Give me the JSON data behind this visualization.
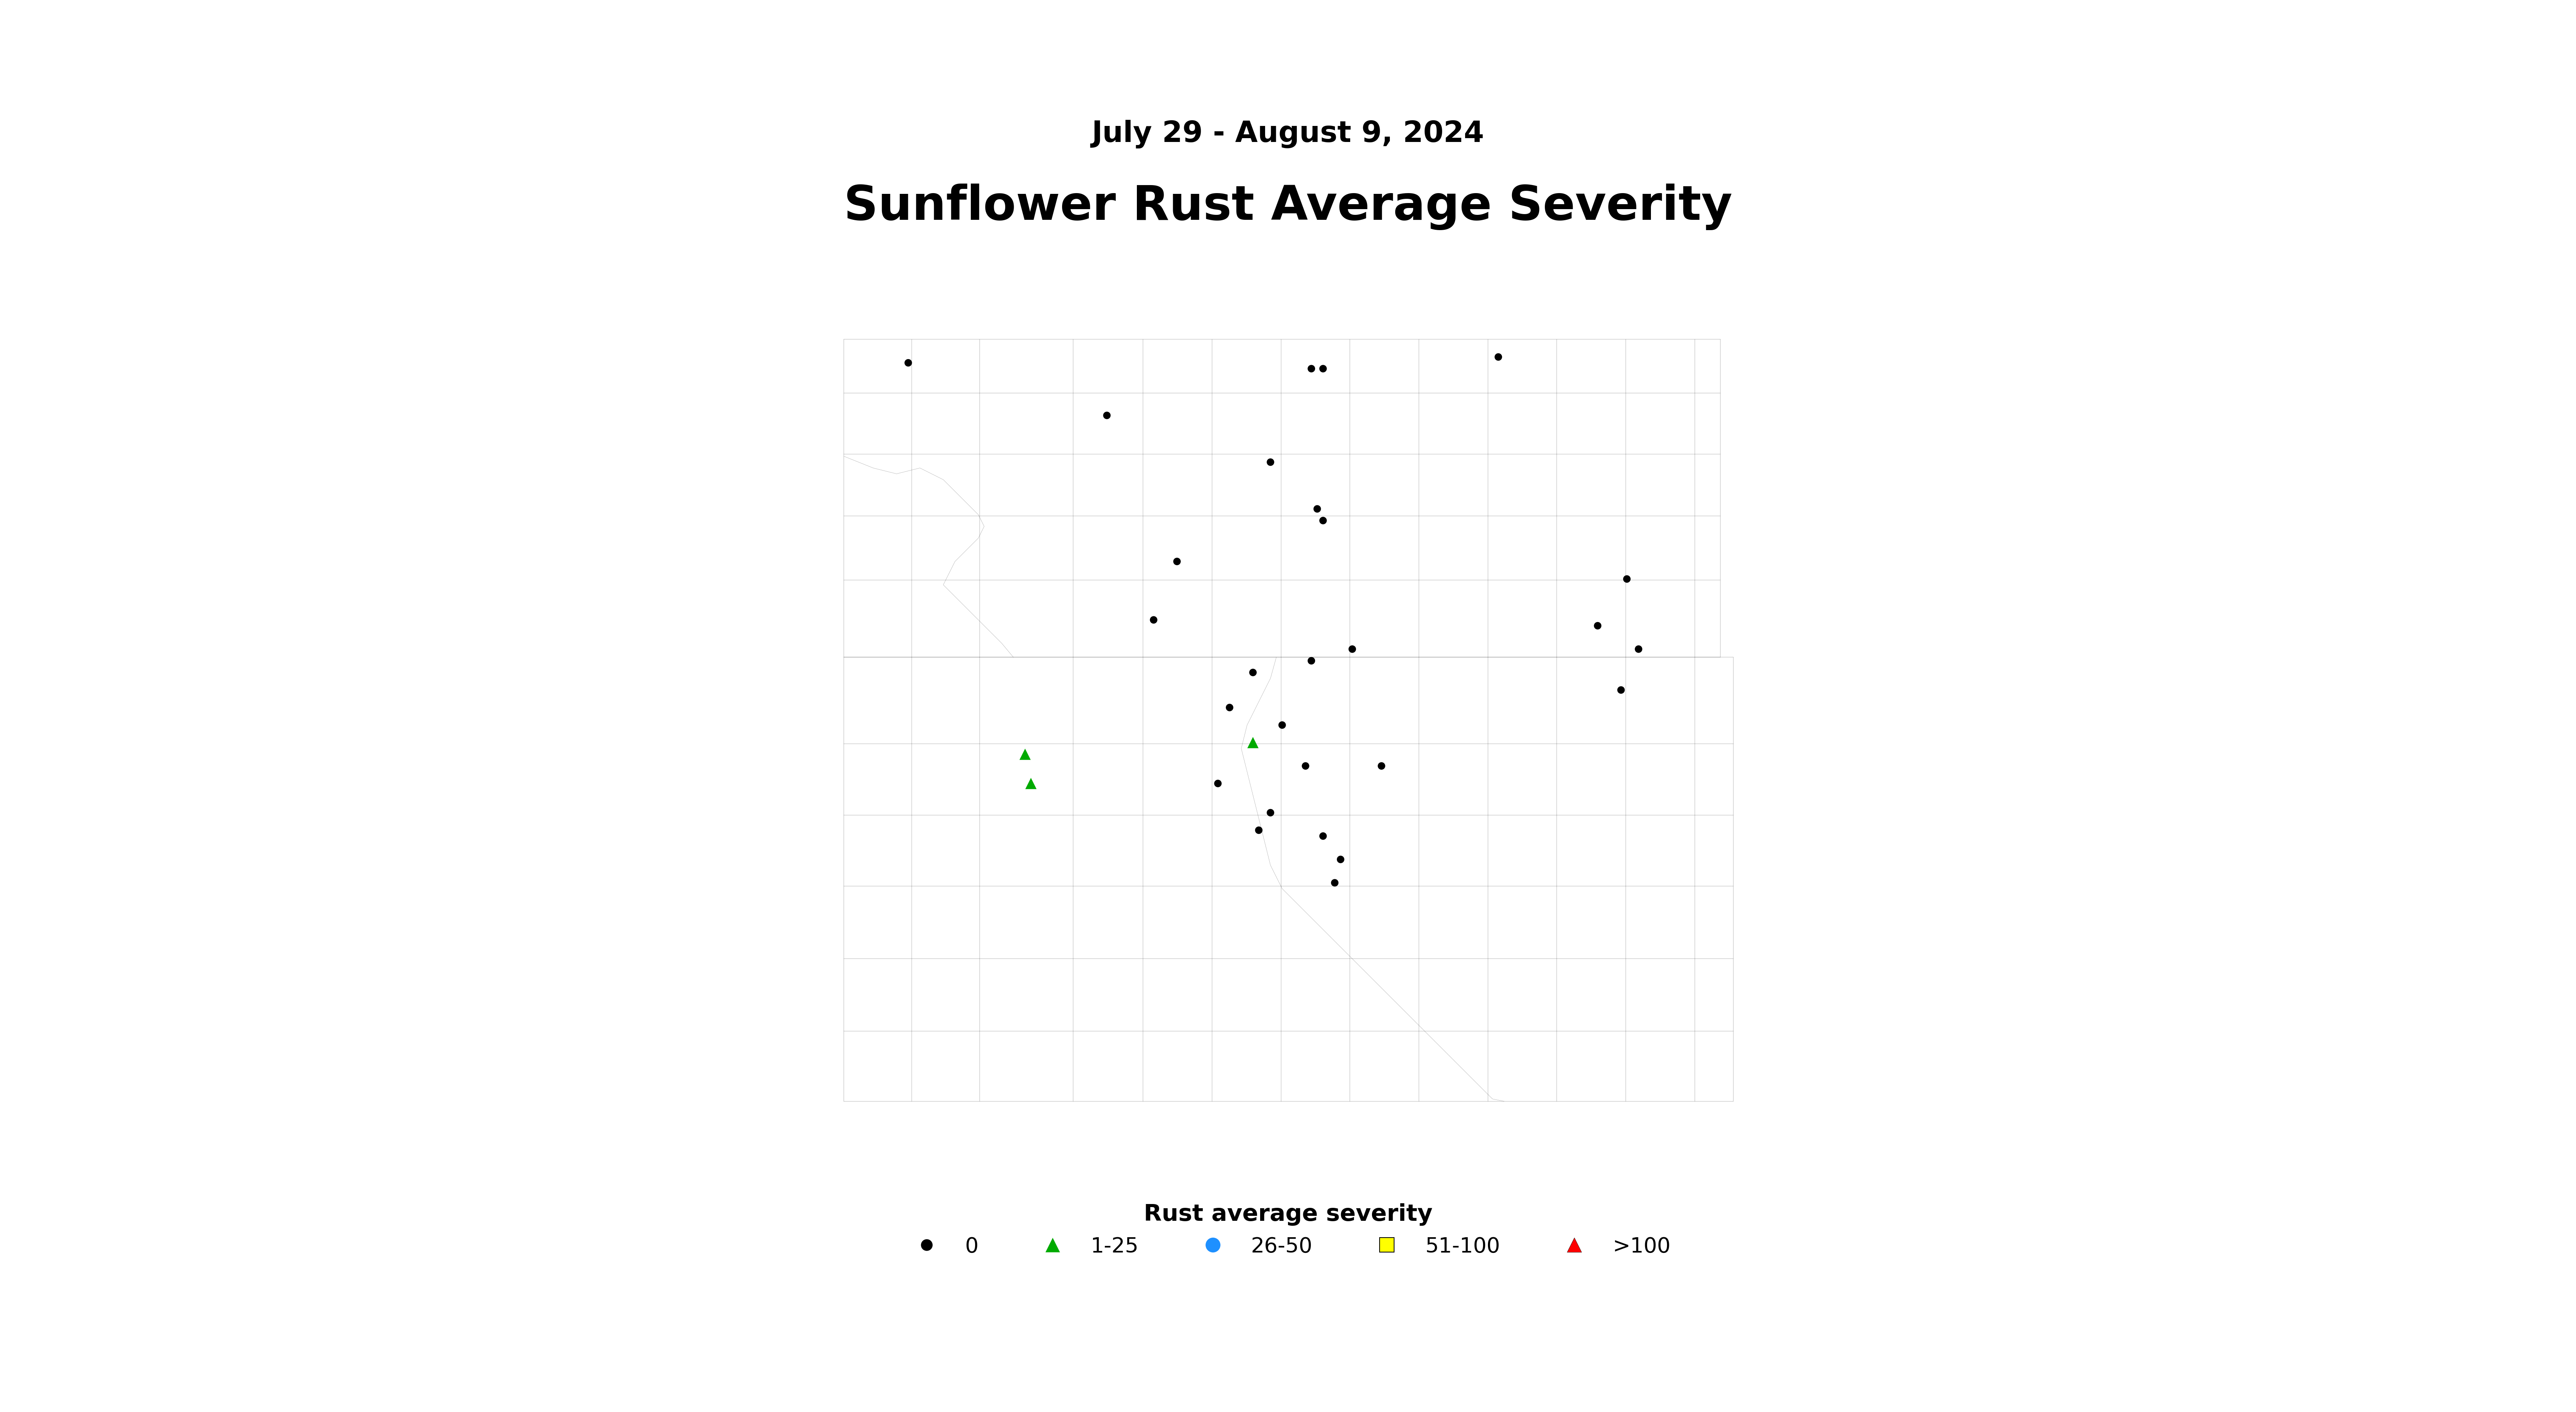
{
  "title": "Sunflower Rust Average Severity",
  "subtitle": "July 29 - August 9, 2024",
  "title_fontsize": 90,
  "subtitle_fontsize": 55,
  "legend_title": "Rust average severity",
  "legend_title_fontsize": 44,
  "legend_item_fontsize": 40,
  "background_color": "#ffffff",
  "map_facecolor": "#ffffff",
  "map_edgecolor": "#000000",
  "map_linewidth": 1.8,
  "markers": {
    "dot": {
      "color": "#000000",
      "marker": "o",
      "size": 200,
      "label": "0",
      "points": [
        [
          -103.5,
          48.8
        ],
        [
          -101.8,
          48.35
        ],
        [
          -100.05,
          48.75
        ],
        [
          -99.95,
          48.75
        ],
        [
          -98.45,
          48.85
        ],
        [
          -100.4,
          47.95
        ],
        [
          -99.95,
          47.45
        ],
        [
          -100.0,
          47.55
        ],
        [
          -101.2,
          47.1
        ],
        [
          -101.4,
          46.6
        ],
        [
          -100.75,
          45.85
        ],
        [
          -100.55,
          46.15
        ],
        [
          -100.05,
          46.25
        ],
        [
          -99.7,
          46.35
        ],
        [
          -100.3,
          45.7
        ],
        [
          -100.1,
          45.35
        ],
        [
          -99.45,
          45.35
        ],
        [
          -100.85,
          45.2
        ],
        [
          -100.4,
          44.95
        ],
        [
          -100.5,
          44.8
        ],
        [
          -99.95,
          44.75
        ],
        [
          -99.8,
          44.55
        ],
        [
          -99.85,
          44.35
        ],
        [
          -97.35,
          46.95
        ],
        [
          -97.25,
          46.35
        ],
        [
          -97.4,
          46.0
        ],
        [
          -97.6,
          46.55
        ]
      ]
    },
    "green_triangle": {
      "color": "#00aa00",
      "marker": "^",
      "size": 450,
      "label": "1-25",
      "points": [
        [
          -102.5,
          45.45
        ],
        [
          -102.45,
          45.2
        ],
        [
          -100.55,
          45.55
        ]
      ]
    },
    "blue_circle": {
      "color": "#1e90ff",
      "marker": "o",
      "size": 450,
      "label": "26-50",
      "points": []
    },
    "yellow_square": {
      "color": "#ffff00",
      "marker": "s",
      "size": 450,
      "label": "51-100",
      "points": []
    },
    "red_triangle": {
      "color": "#ff0000",
      "marker": "^",
      "size": 450,
      "label": ">100",
      "points": []
    }
  },
  "xlim": [
    -104.15,
    -96.35
  ],
  "ylim": [
    42.3,
    49.2
  ],
  "figsize": [
    67.5,
    37.0
  ],
  "dpi": 100
}
